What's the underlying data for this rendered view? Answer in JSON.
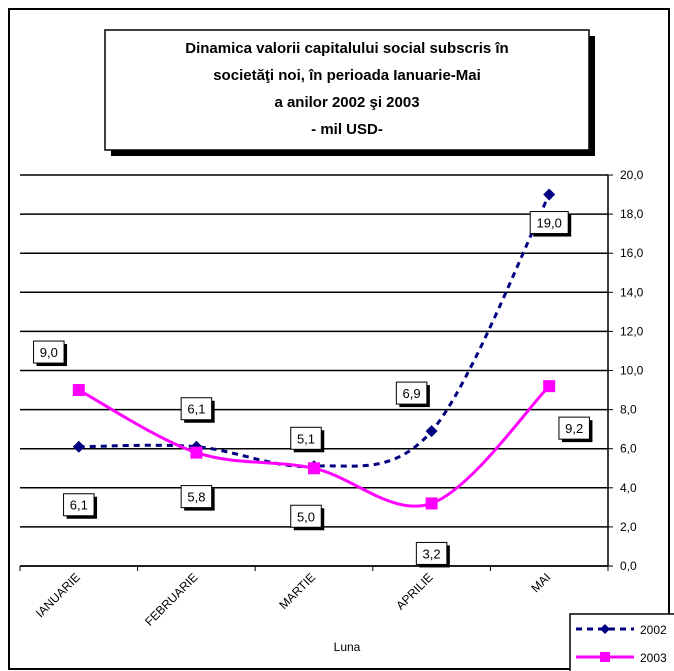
{
  "chart_data": {
    "type": "line",
    "title_lines": [
      "Dinamica  valorii capitalului social subscris în",
      "societăţi noi,  în perioada Ianuarie-Mai",
      "a anilor 2002 şi 2003",
      "- mil  USD-"
    ],
    "xlabel": "Luna",
    "ylabel": "",
    "categories": [
      "IANUARIE",
      "FEBRUARIE",
      "MARTIE",
      "APRILIE",
      "MAI"
    ],
    "ylim": [
      0,
      20
    ],
    "yticks": [
      "0,0",
      "2,0",
      "4,0",
      "6,0",
      "8,0",
      "10,0",
      "12,0",
      "14,0",
      "16,0",
      "18,0",
      "20,0"
    ],
    "grid": true,
    "legend_position": "bottom-right",
    "series": [
      {
        "name": "2002",
        "values": [
          6.1,
          6.1,
          5.1,
          6.9,
          19.0
        ],
        "labels": [
          "6,1",
          "6,1",
          "5,1",
          "6,9",
          "19,0"
        ],
        "color": "#000080",
        "line_style": "dotted",
        "marker": "diamond"
      },
      {
        "name": "2003",
        "values": [
          9.0,
          5.8,
          5.0,
          3.2,
          9.2
        ],
        "labels": [
          "9,0",
          "5,8",
          "5,0",
          "3,2",
          "9,2"
        ],
        "color": "#ff00ff",
        "line_style": "solid",
        "marker": "square"
      }
    ]
  }
}
